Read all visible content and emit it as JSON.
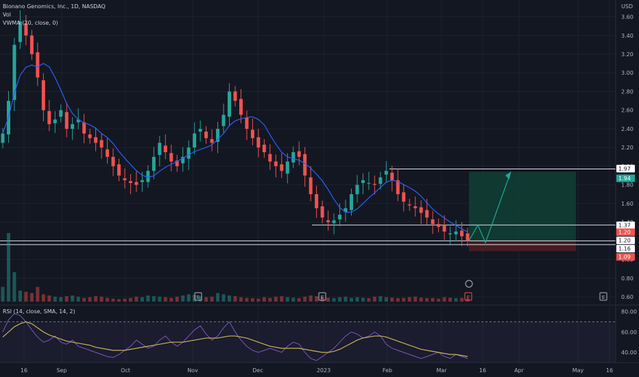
{
  "header": {
    "symbol_line": "Bionano Genomics, Inc., 1D, NASDAQ",
    "vol_label": "Vol",
    "vwma_label": "VWMA (20, close, 0)",
    "rsi_label": "RSI (14, close, SMA, 14, 2)"
  },
  "colors": {
    "background": "#131722",
    "grid": "#1e222d",
    "up": "#26a69a",
    "down": "#ef5350",
    "vwma": "#2962ff",
    "rsi_line": "#7e57c2",
    "rsi_sma": "#c9b458",
    "target_zone": "#0f3d33",
    "stop_zone": "#4a1d22",
    "text": "#b2b5be"
  },
  "chart_data": [
    {
      "type": "candlestick",
      "title": "Bionano Genomics, Inc., 1D, NASDAQ",
      "y_unit": "USD",
      "y_range": [
        0.52,
        3.78
      ],
      "y_ticks": [
        3.6,
        3.4,
        3.2,
        3.0,
        2.8,
        2.6,
        2.4,
        2.2,
        2.0,
        1.8,
        1.6,
        1.4,
        1.2,
        1.0,
        0.8,
        0.6
      ],
      "x_ticks": [
        "16",
        "Sep",
        "Oct",
        "Nov",
        "Dec",
        "2023",
        "Feb",
        "Mar",
        "16",
        "Apr",
        "May",
        "16"
      ],
      "price_labels": [
        {
          "value": 1.97,
          "text": "1.97",
          "kind": "line"
        },
        {
          "value": 1.94,
          "text": "1.94",
          "kind": "target"
        },
        {
          "value": 1.37,
          "text": "1.37",
          "kind": "line"
        },
        {
          "value": 1.2,
          "text": "1.20",
          "kind": "price"
        },
        {
          "value": 1.2,
          "text": "1.20",
          "kind": "line"
        },
        {
          "value": 1.16,
          "text": "1.16",
          "kind": "line"
        },
        {
          "value": 1.09,
          "text": "1.09",
          "kind": "stop"
        }
      ],
      "horizontal_levels": [
        1.97,
        1.37,
        1.2,
        1.16
      ],
      "position": {
        "entry": 1.2,
        "target": 1.94,
        "stop": 1.09
      },
      "projection_path": [
        1.2,
        1.37,
        1.18,
        1.94
      ],
      "close_series": [
        2.35,
        2.7,
        3.3,
        3.55,
        3.4,
        3.2,
        2.95,
        2.6,
        2.45,
        2.5,
        2.6,
        2.4,
        2.45,
        2.5,
        2.35,
        2.3,
        2.25,
        2.2,
        2.1,
        2.0,
        1.9,
        1.85,
        1.82,
        1.8,
        1.85,
        1.95,
        2.1,
        2.25,
        2.15,
        2.05,
        2.0,
        2.1,
        2.2,
        2.35,
        2.4,
        2.3,
        2.25,
        2.4,
        2.55,
        2.8,
        2.7,
        2.55,
        2.4,
        2.3,
        2.2,
        2.15,
        2.05,
        2.0,
        1.95,
        2.05,
        2.15,
        2.1,
        1.9,
        1.7,
        1.55,
        1.45,
        1.4,
        1.42,
        1.48,
        1.55,
        1.7,
        1.8,
        1.85,
        1.82,
        1.8,
        1.88,
        1.95,
        1.85,
        1.7,
        1.62,
        1.58,
        1.55,
        1.5,
        1.45,
        1.38,
        1.35,
        1.3,
        1.28,
        1.3,
        1.25,
        1.2
      ],
      "volume_series": [
        60,
        280,
        120,
        45,
        40,
        35,
        60,
        30,
        25,
        20,
        18,
        22,
        25,
        20,
        15,
        18,
        22,
        20,
        15,
        12,
        10,
        12,
        15,
        20,
        18,
        25,
        22,
        20,
        18,
        15,
        20,
        25,
        30,
        28,
        22,
        18,
        20,
        35,
        30,
        25,
        22,
        18,
        15,
        14,
        12,
        18,
        15,
        20,
        22,
        18,
        16,
        14,
        20,
        25,
        22,
        18,
        16,
        14,
        18,
        20,
        15,
        18,
        16,
        14,
        20,
        22,
        18,
        16,
        14,
        15,
        18,
        20,
        16,
        14,
        15,
        12,
        18,
        16,
        14,
        15,
        12
      ],
      "event_markers": [
        "E",
        "E",
        "E",
        "E"
      ]
    },
    {
      "type": "line",
      "title": "RSI (14, close, SMA, 14, 2)",
      "y_range": [
        30,
        85
      ],
      "y_ticks": [
        80.0,
        60.0,
        40.0
      ],
      "bands": [
        70,
        30
      ],
      "series": [
        {
          "name": "RSI",
          "values": [
            60,
            72,
            78,
            76,
            70,
            62,
            55,
            50,
            52,
            56,
            50,
            48,
            52,
            46,
            44,
            42,
            40,
            38,
            36,
            35,
            38,
            42,
            46,
            52,
            48,
            44,
            46,
            52,
            56,
            50,
            46,
            50,
            56,
            62,
            66,
            58,
            52,
            56,
            64,
            70,
            60,
            52,
            46,
            42,
            40,
            42,
            44,
            42,
            40,
            46,
            50,
            48,
            40,
            34,
            32,
            36,
            40,
            44,
            50,
            56,
            60,
            58,
            54,
            56,
            60,
            56,
            48,
            44,
            42,
            40,
            38,
            36,
            34,
            36,
            38,
            40,
            36,
            34,
            38,
            36,
            34
          ]
        },
        {
          "name": "RSI-based MA",
          "values": [
            55,
            60,
            65,
            68,
            70,
            68,
            64,
            60,
            57,
            55,
            53,
            51,
            50,
            49,
            48,
            47,
            45,
            44,
            43,
            42,
            42,
            42,
            43,
            44,
            45,
            46,
            47,
            48,
            49,
            50,
            50,
            50,
            51,
            52,
            53,
            54,
            54,
            54,
            55,
            56,
            56,
            55,
            54,
            52,
            50,
            48,
            46,
            45,
            44,
            44,
            44,
            44,
            43,
            42,
            41,
            40,
            40,
            41,
            43,
            46,
            49,
            52,
            54,
            55,
            56,
            56,
            55,
            53,
            51,
            49,
            47,
            45,
            43,
            42,
            41,
            40,
            39,
            38,
            38,
            37,
            36
          ]
        }
      ]
    }
  ]
}
